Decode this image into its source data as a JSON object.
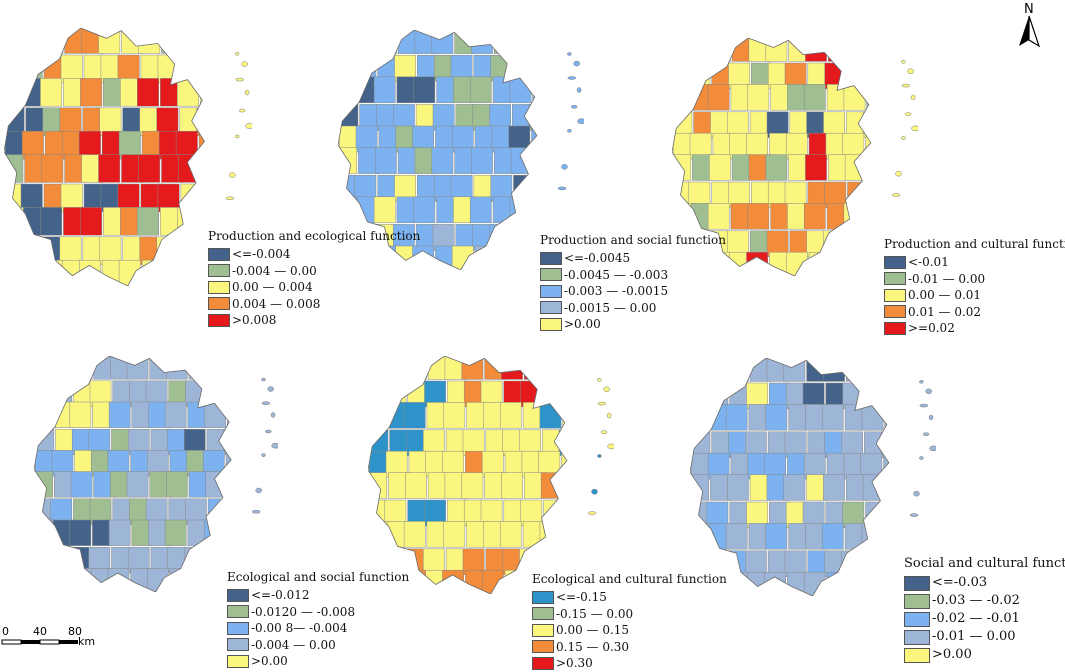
{
  "colors": {
    "dark_blue": "#44638a",
    "sage": "#9fbe92",
    "yellow": "#fbf77e",
    "orange": "#f28b3a",
    "red": "#e41a1c",
    "light_blue": "#7cb2ef",
    "steel": "#9db6d8",
    "cyan": "#2e93c9",
    "outline": "#888888"
  },
  "north_arrow": {
    "label": "N"
  },
  "scale_bar": {
    "ticks": [
      "0",
      "40",
      "80"
    ],
    "unit": "km"
  },
  "panels": [
    {
      "id": "production-ecological",
      "legend": {
        "title": "Production and ecological function",
        "items": [
          {
            "label": "<=-0.004",
            "color": "#44638a"
          },
          {
            "label": "-0.004 — 0.00",
            "color": "#9fbe92"
          },
          {
            "label": "0.00 — 0.004",
            "color": "#fbf77e"
          },
          {
            "label": "0.004 — 0.008",
            "color": "#f28b3a"
          },
          {
            "label": ">0.008",
            "color": "#e41a1c"
          }
        ]
      }
    },
    {
      "id": "production-social",
      "legend": {
        "title": "Production and social function",
        "items": [
          {
            "label": "<=-0.0045",
            "color": "#44638a"
          },
          {
            "label": "-0.0045 — -0.003",
            "color": "#9fbe92"
          },
          {
            "label": "-0.003 — -0.0015",
            "color": "#7cb2ef"
          },
          {
            "label": "-0.0015 — 0.00",
            "color": "#9db6d8"
          },
          {
            "label": ">0.00",
            "color": "#fbf77e"
          }
        ]
      }
    },
    {
      "id": "production-cultural",
      "legend": {
        "title": "Production and cultural function",
        "items": [
          {
            "label": "<-0.01",
            "color": "#44638a"
          },
          {
            "label": "-0.01 — 0.00",
            "color": "#9fbe92"
          },
          {
            "label": "0.00 — 0.01",
            "color": "#fbf77e"
          },
          {
            "label": "0.01 — 0.02",
            "color": "#f28b3a"
          },
          {
            "label": ">=0.02",
            "color": "#e41a1c"
          }
        ]
      }
    },
    {
      "id": "ecological-social",
      "legend": {
        "title": "Ecological and social function",
        "items": [
          {
            "label": "<=-0.012",
            "color": "#44638a"
          },
          {
            "label": "-0.0120 — -0.008",
            "color": "#9fbe92"
          },
          {
            "label": "-0.00 8— -0.004",
            "color": "#7cb2ef"
          },
          {
            "label": "-0.004 — 0.00",
            "color": "#9db6d8"
          },
          {
            "label": ">0.00",
            "color": "#fbf77e"
          }
        ]
      }
    },
    {
      "id": "ecological-cultural",
      "legend": {
        "title": "Ecological and cultural function",
        "items": [
          {
            "label": "<=-0.15",
            "color": "#2e93c9"
          },
          {
            "label": "-0.15 — 0.00",
            "color": "#9fbe92"
          },
          {
            "label": "0.00 — 0.15",
            "color": "#fbf77e"
          },
          {
            "label": "0.15 — 0.30",
            "color": "#f28b3a"
          },
          {
            "label": ">0.30",
            "color": "#e41a1c"
          }
        ]
      }
    },
    {
      "id": "social-cultural",
      "legend": {
        "title": "Social and cultural function",
        "items": [
          {
            "label": "<=-0.03",
            "color": "#44638a"
          },
          {
            "label": "-0.03 — -0.02",
            "color": "#9fbe92"
          },
          {
            "label": "-0.02 — -0.01",
            "color": "#7cb2ef"
          },
          {
            "label": "-0.01 — 0.00",
            "color": "#9db6d8"
          },
          {
            "label": ">0.00",
            "color": "#fbf77e"
          }
        ]
      }
    }
  ]
}
